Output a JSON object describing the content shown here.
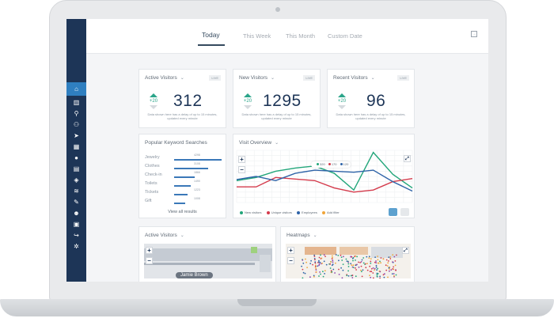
{
  "sidebar": {
    "items": [
      {
        "icon": "home-icon",
        "glyph": "⌂"
      },
      {
        "icon": "bar-chart-icon",
        "glyph": "▥"
      },
      {
        "icon": "search-icon",
        "glyph": "⚲"
      },
      {
        "icon": "users-icon",
        "glyph": "⚇"
      },
      {
        "icon": "navigation-icon",
        "glyph": "➤"
      },
      {
        "icon": "map-icon",
        "glyph": "▦"
      },
      {
        "icon": "pin-icon",
        "glyph": "●"
      },
      {
        "icon": "building-icon",
        "glyph": "▤"
      },
      {
        "icon": "cube-icon",
        "glyph": "◈"
      },
      {
        "icon": "wifi-icon",
        "glyph": "≋"
      },
      {
        "icon": "edit-icon",
        "glyph": "✎"
      },
      {
        "icon": "user-icon",
        "glyph": "☻"
      },
      {
        "icon": "calendar-icon",
        "glyph": "▣"
      },
      {
        "icon": "share-icon",
        "glyph": "↪"
      },
      {
        "icon": "settings-icon",
        "glyph": "✲"
      }
    ]
  },
  "header": {
    "tabs": [
      {
        "label": "Today"
      },
      {
        "label": "This Week"
      },
      {
        "label": "This Month"
      },
      {
        "label": "Custom Date"
      }
    ]
  },
  "stats": [
    {
      "title": "Active Visitors",
      "badge": "LIVE",
      "value": "312",
      "delta": "+20",
      "note": "Data shown here has a delay of up to 15 minutes, updated every minute"
    },
    {
      "title": "New Visitors",
      "badge": "LIVE",
      "value": "1295",
      "delta": "+20",
      "note": "Data shown here has a delay of up to 15 minutes, updated every minute"
    },
    {
      "title": "Recent Visitors",
      "badge": "LIVE",
      "value": "96",
      "delta": "+20",
      "note": "Data shown here has a delay of up to 15 minutes, updated every minute"
    }
  ],
  "keywords": {
    "title": "Popular Keyword Searches",
    "items": [
      {
        "label": "Jewelry",
        "value": "4298",
        "fraction": 1.0
      },
      {
        "label": "Clothes",
        "value": "3108",
        "fraction": 0.72
      },
      {
        "label": "Check-in",
        "value": "1866",
        "fraction": 0.43
      },
      {
        "label": "Toilets",
        "value": "1490",
        "fraction": 0.35
      },
      {
        "label": "Tickets",
        "value": "1223",
        "fraction": 0.28
      },
      {
        "label": "Gift",
        "value": "1008",
        "fraction": 0.23
      }
    ],
    "view_all": "View all results"
  },
  "overview": {
    "title": "Visit Overview",
    "tooltip": {
      "a": "320",
      "b": "170",
      "c": "120"
    },
    "legend": [
      "New visitors",
      "Unique visitors",
      "Employees",
      "Add filter"
    ],
    "colors": {
      "green": "#22a67a",
      "red": "#d43b4c",
      "blue": "#2e63a8",
      "orange": "#f0a63a"
    }
  },
  "chart_data": {
    "type": "line",
    "x": [
      0,
      1,
      2,
      3,
      4,
      5,
      6,
      7,
      8,
      9
    ],
    "series": [
      {
        "name": "New visitors",
        "values": [
          42,
          48,
          60,
          66,
          70,
          56,
          24,
          96,
          54,
          28
        ]
      },
      {
        "name": "Unique visitors",
        "values": [
          30,
          30,
          48,
          45,
          42,
          28,
          20,
          24,
          40,
          46
        ]
      },
      {
        "name": "Employees",
        "values": [
          44,
          50,
          42,
          56,
          62,
          60,
          58,
          62,
          40,
          22
        ]
      }
    ],
    "ylim": [
      0,
      100
    ],
    "grid": true
  },
  "bottom": {
    "active_title": "Active Visitors",
    "heatmap_title": "Heatmaps",
    "map_label": "Jamie Brown"
  }
}
